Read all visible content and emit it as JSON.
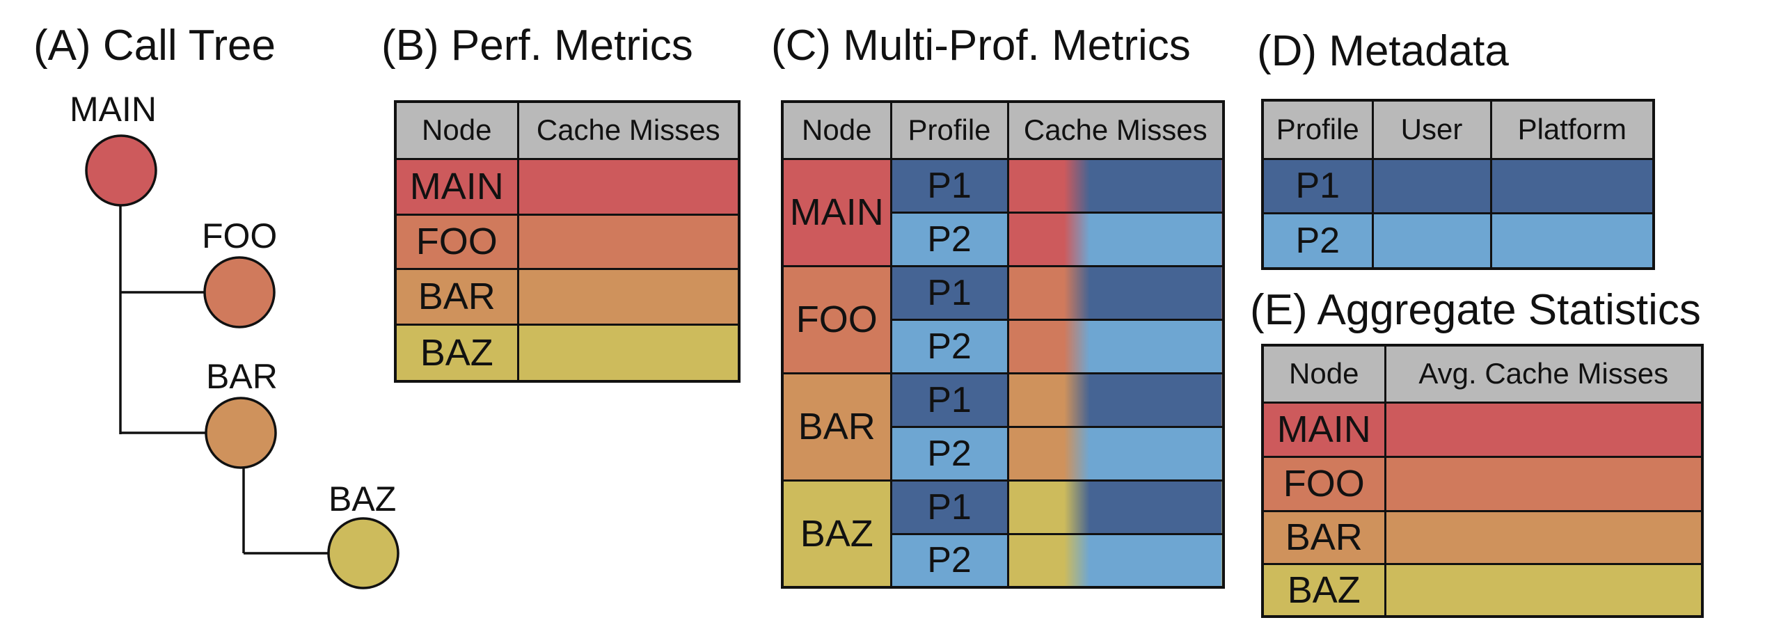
{
  "colors": {
    "MAIN": "#cd5a5c",
    "FOO": "#d07a5c",
    "BAR": "#cf925c",
    "BAZ": "#cdbb5c",
    "P1": "#456494",
    "P2": "#6ea6d2",
    "header": "#b9b9b9"
  },
  "panelA": {
    "title": "(A) Call Tree",
    "nodes": [
      "MAIN",
      "FOO",
      "BAR",
      "BAZ"
    ]
  },
  "panelB": {
    "title": "(B) Perf. Metrics",
    "headers": [
      "Node",
      "Cache Misses"
    ],
    "rows": [
      "MAIN",
      "FOO",
      "BAR",
      "BAZ"
    ]
  },
  "panelC": {
    "title": "(C) Multi-Prof. Metrics",
    "headers": [
      "Node",
      "Profile",
      "Cache Misses"
    ],
    "nodes": [
      "MAIN",
      "FOO",
      "BAR",
      "BAZ"
    ],
    "profiles": [
      "P1",
      "P2"
    ]
  },
  "panelD": {
    "title": "(D) Metadata",
    "headers": [
      "Profile",
      "User",
      "Platform"
    ],
    "rows": [
      "P1",
      "P2"
    ]
  },
  "panelE": {
    "title": "(E) Aggregate Statistics",
    "headers": [
      "Node",
      "Avg. Cache Misses"
    ],
    "rows": [
      "MAIN",
      "FOO",
      "BAR",
      "BAZ"
    ]
  }
}
